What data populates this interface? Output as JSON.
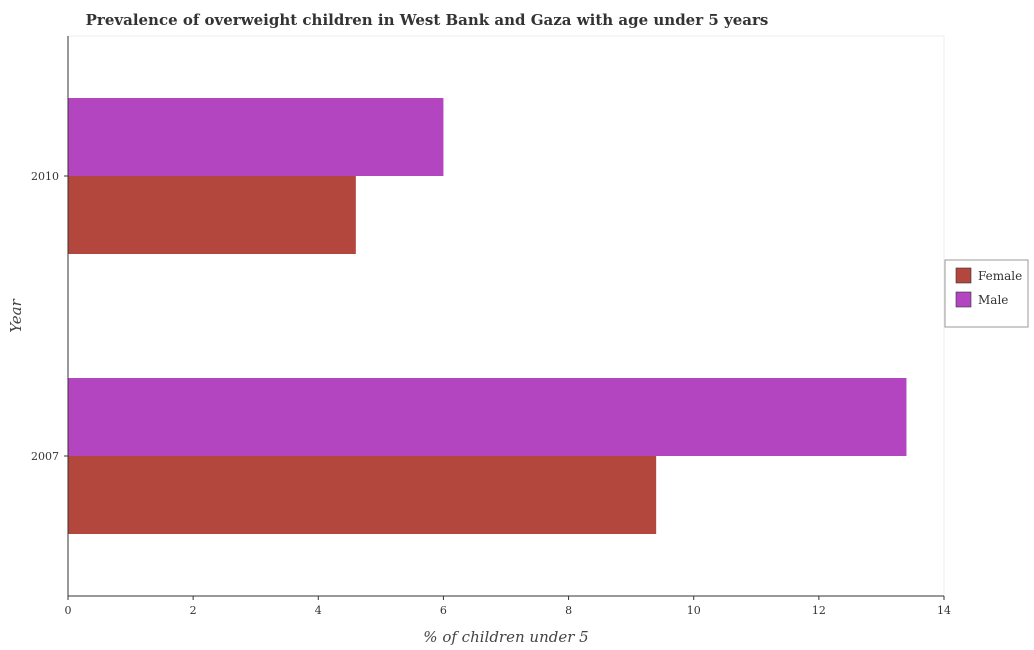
{
  "chart_data": {
    "type": "bar",
    "orientation": "horizontal",
    "title": "Prevalence of overweight children in West Bank and Gaza with age under 5 years",
    "xlabel": "% of children under 5",
    "ylabel": "Year",
    "categories": [
      "2007",
      "2010"
    ],
    "series": [
      {
        "name": "Female",
        "values": [
          9.4,
          4.6
        ],
        "color": "#b3473d"
      },
      {
        "name": "Male",
        "values": [
          13.4,
          6.0
        ],
        "color": "#b345c1"
      }
    ],
    "xlim": [
      0,
      14
    ],
    "xticks": [
      "0",
      "2",
      "4",
      "6",
      "8",
      "10",
      "12",
      "14"
    ],
    "grid": false,
    "legend_position": "right"
  }
}
